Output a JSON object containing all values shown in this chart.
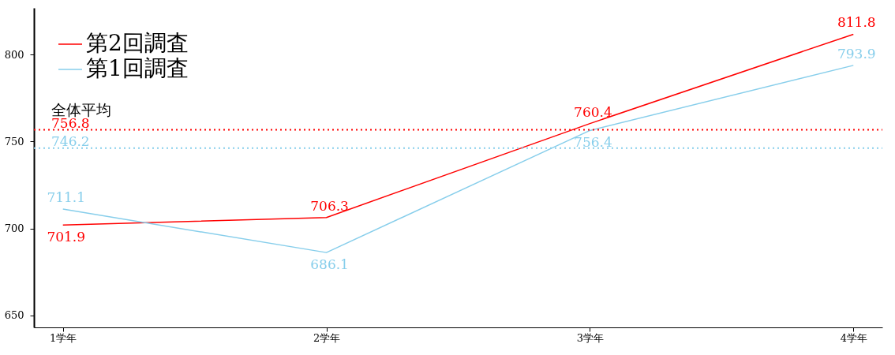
{
  "chart_data": {
    "type": "line",
    "categories": [
      "1学年",
      "2学年",
      "3学年",
      "4学年"
    ],
    "series": [
      {
        "name": "第2回調査",
        "color": "#ff0000",
        "values": [
          701.9,
          706.3,
          760.4,
          811.8
        ]
      },
      {
        "name": "第1回調査",
        "color": "#87ceeb",
        "values": [
          711.1,
          686.1,
          756.4,
          793.9
        ]
      }
    ],
    "ylim": [
      643,
      827
    ],
    "yticks": [
      650,
      700,
      750,
      800
    ],
    "grid": false,
    "legend": "top left",
    "marker": "none",
    "line_style": "solid",
    "data_labels": true,
    "ref_lines": [
      {
        "axis": "y",
        "value": 756.8,
        "label": "756.8",
        "color": "#ff0000",
        "line_style": "dotted"
      },
      {
        "axis": "y",
        "value": 746.2,
        "label": "746.2",
        "color": "#87ceeb",
        "line_style": "dotted"
      }
    ],
    "annotations": [
      "全体平均"
    ]
  }
}
